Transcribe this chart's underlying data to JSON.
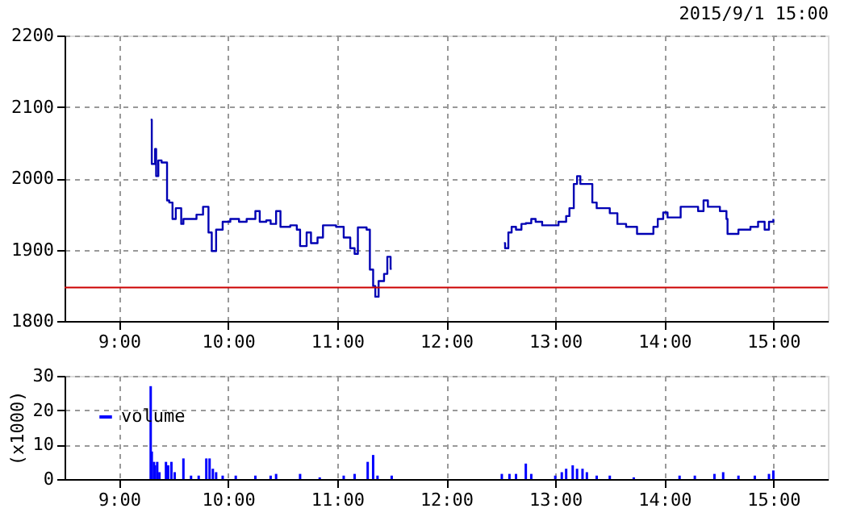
{
  "chart_data": [
    {
      "type": "step",
      "xlim": [
        8.5,
        15.5
      ],
      "ylim": [
        1800,
        2200
      ],
      "yticks": [
        1800,
        1900,
        2000,
        2100,
        2200
      ],
      "xticks": [
        {
          "value": 9,
          "label": "9:00"
        },
        {
          "value": 10,
          "label": "10:00"
        },
        {
          "value": 11,
          "label": "11:00"
        },
        {
          "value": 12,
          "label": "12:00"
        },
        {
          "value": 13,
          "label": "13:00"
        },
        {
          "value": 14,
          "label": "14:00"
        },
        {
          "value": 15,
          "label": "15:00"
        }
      ],
      "grid": true,
      "legend": false,
      "line_style": "solid",
      "marker": "none",
      "annotations": [
        "2015/9/1 15:00"
      ],
      "ref_lines": [
        {
          "axis": "y",
          "value": 1847,
          "label": null,
          "color": "#cc0000"
        }
      ],
      "series": [
        {
          "color": "#0000b4",
          "x": [
            9.29,
            9.3,
            9.33,
            9.34,
            9.36,
            9.39,
            9.44,
            9.46,
            9.49,
            9.52,
            9.55,
            9.57,
            9.59,
            9.65,
            9.71,
            9.77,
            9.82,
            9.85,
            9.89,
            9.95,
            10.02,
            10.1,
            10.17,
            10.25,
            10.29,
            10.35,
            10.39,
            10.44,
            10.48,
            10.57,
            10.63,
            10.66,
            10.72,
            10.76,
            10.82,
            10.87,
            10.99,
            11.06,
            11.12,
            11.16,
            11.19,
            11.27,
            11.3,
            11.33,
            11.35,
            11.38,
            11.43,
            11.46,
            11.49,
            11.5,
            12.0,
            12.53,
            12.54,
            12.57,
            12.6,
            12.64,
            12.69,
            12.73,
            12.78,
            12.82,
            12.88,
            13.03,
            13.1,
            13.13,
            13.17,
            13.2,
            13.23,
            13.34,
            13.38,
            13.5,
            13.57,
            13.65,
            13.75,
            13.9,
            13.94,
            13.99,
            14.03,
            14.15,
            14.31,
            14.36,
            14.4,
            14.51,
            14.57,
            14.58,
            14.68,
            14.79,
            14.86,
            14.92,
            14.96,
            15.0
          ],
          "values": [
            2082,
            2020,
            2041,
            2003,
            2025,
            2022,
            1969,
            1966,
            1943,
            1958,
            1958,
            1936,
            1943,
            1943,
            1949,
            1960,
            1924,
            1898,
            1928,
            1939,
            1943,
            1939,
            1943,
            1954,
            1939,
            1941,
            1936,
            1954,
            1932,
            1934,
            1928,
            1905,
            1924,
            1909,
            1917,
            1934,
            1932,
            1917,
            1902,
            1894,
            1931,
            1928,
            1872,
            1849,
            1834,
            1856,
            1866,
            1890,
            1873,
            1873,
            null,
            1909,
            1902,
            1924,
            1932,
            1928,
            1936,
            1937,
            1943,
            1939,
            1934,
            1939,
            1947,
            1958,
            1992,
            2003,
            1992,
            1966,
            1958,
            1951,
            1936,
            1932,
            1922,
            1932,
            1943,
            1952,
            1945,
            1960,
            1954,
            1969,
            1960,
            1954,
            1943,
            1922,
            1928,
            1932,
            1939,
            1928,
            1939,
            1943
          ]
        }
      ]
    },
    {
      "type": "bar",
      "xlim": [
        8.5,
        15.5
      ],
      "ylim": [
        0,
        30
      ],
      "yticks": [
        0,
        10,
        20,
        30
      ],
      "ylabel": "(x1000)",
      "xticks": [
        {
          "value": 9,
          "label": "9:00"
        },
        {
          "value": 10,
          "label": "10:00"
        },
        {
          "value": 11,
          "label": "11:00"
        },
        {
          "value": 12,
          "label": "12:00"
        },
        {
          "value": 13,
          "label": "13:00"
        },
        {
          "value": 14,
          "label": "14:00"
        },
        {
          "value": 15,
          "label": "15:00"
        }
      ],
      "grid": true,
      "legend": "top left",
      "series": [
        {
          "name": "volume",
          "color": "#0000ff",
          "x": [
            9.29,
            9.3,
            9.32,
            9.33,
            9.35,
            9.37,
            9.43,
            9.45,
            9.48,
            9.51,
            9.59,
            9.66,
            9.73,
            9.8,
            9.83,
            9.86,
            9.89,
            9.95,
            10.07,
            10.25,
            10.39,
            10.44,
            10.66,
            10.84,
            11.06,
            11.16,
            11.28,
            11.33,
            11.37,
            11.5,
            12.51,
            12.58,
            12.64,
            12.73,
            12.78,
            13.0,
            13.06,
            13.1,
            13.16,
            13.2,
            13.25,
            13.29,
            13.38,
            13.5,
            13.72,
            14.14,
            14.28,
            14.46,
            14.54,
            14.68,
            14.83,
            14.96,
            15.0
          ],
          "values": [
            27,
            8,
            5,
            4,
            5,
            2,
            5,
            4,
            5,
            2,
            6,
            1,
            1,
            6,
            6,
            3,
            2,
            1,
            1,
            1,
            1,
            1.5,
            1.5,
            0.5,
            1,
            1.5,
            5,
            7,
            1,
            1,
            1.5,
            1.5,
            1.5,
            4.5,
            1.5,
            1,
            2,
            3,
            4,
            3,
            3,
            2,
            1,
            1,
            0.5,
            1,
            1,
            1.5,
            2,
            1,
            1,
            1.5,
            2.5
          ]
        }
      ]
    }
  ]
}
